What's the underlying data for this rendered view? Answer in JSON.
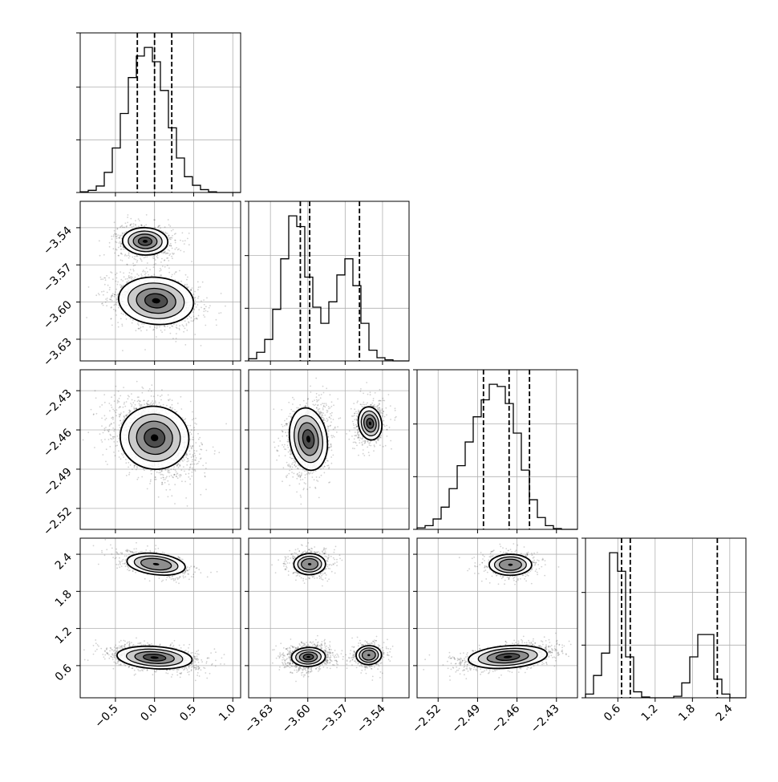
{
  "chart_data": {
    "type": "corner",
    "variables": [
      {
        "ticks": [
          -0.5,
          0.0,
          0.5,
          1.0
        ],
        "tick_labels": [
          "−0.5",
          "0.0",
          "0.5",
          "1.0"
        ],
        "range": [
          -0.95,
          1.1
        ]
      },
      {
        "ticks": [
          -3.63,
          -3.6,
          -3.57,
          -3.54
        ],
        "tick_labels": [
          "−3.63",
          "−3.60",
          "−3.57",
          "−3.54"
        ],
        "range": [
          -3.6475,
          -3.5187
        ]
      },
      {
        "ticks": [
          -2.52,
          -2.49,
          -2.46,
          -2.43
        ],
        "tick_labels": [
          "−2.52",
          "−2.49",
          "−2.46",
          "−2.43"
        ],
        "range": [
          -2.536,
          -2.414
        ]
      },
      {
        "ticks": [
          0.6,
          1.2,
          1.8,
          2.4
        ],
        "tick_labels": [
          "0.6",
          "1.2",
          "1.8",
          "2.4"
        ],
        "range": [
          0.08,
          2.66
        ]
      }
    ],
    "quantiles": [
      [
        -0.22,
        0.0,
        0.22
      ],
      [
        -3.606,
        -3.5985,
        -3.5585
      ],
      [
        -2.4855,
        -2.466,
        -2.4505
      ],
      [
        0.66,
        0.8,
        2.2
      ]
    ],
    "histograms": [
      {
        "bins": [
          -0.95,
          1.1
        ],
        "counts": [
          1,
          3,
          9,
          28,
          62,
          110,
          160,
          190,
          202,
          182,
          142,
          90,
          48,
          22,
          10,
          4,
          1,
          0,
          0,
          0
        ]
      },
      {
        "bins": [
          -3.6475,
          -3.5187
        ],
        "counts": [
          2,
          8,
          20,
          48,
          95,
          135,
          125,
          78,
          50,
          35,
          55,
          80,
          95,
          70,
          35,
          10,
          3,
          1,
          0,
          0
        ]
      },
      {
        "bins": [
          -2.536,
          -2.414
        ],
        "counts": [
          2,
          5,
          14,
          30,
          55,
          86,
          118,
          152,
          175,
          196,
          193,
          170,
          130,
          80,
          40,
          16,
          5,
          1,
          0,
          0
        ]
      },
      {
        "bins": [
          0.08,
          2.66
        ],
        "counts": [
          5,
          30,
          60,
          195,
          170,
          55,
          8,
          1,
          0,
          0,
          0,
          2,
          20,
          55,
          85,
          85,
          25,
          5,
          0,
          0
        ]
      }
    ],
    "modes": {
      "0": [
        {
          "mu": 0.0,
          "sd": 0.2,
          "w": 1
        }
      ],
      "1": [
        {
          "mu": -3.5985,
          "sd": 0.0075,
          "w": 0.68
        },
        {
          "mu": -3.5505,
          "sd": 0.0065,
          "w": 0.32
        }
      ],
      "2": [
        {
          "mu": -2.465,
          "sd": 0.0115,
          "w": 1
        }
      ],
      "3": [
        {
          "mu": 0.73,
          "sd": 0.12,
          "w": 0.73
        },
        {
          "mu": 2.23,
          "sd": 0.12,
          "w": 0.27
        }
      ]
    },
    "pairs": [
      {
        "x": 0,
        "y": 1,
        "blobs": [
          {
            "cx": 0.02,
            "cy": -3.599,
            "sx": 0.24,
            "sy": 0.0095,
            "rho": -0.25,
            "w": 0.68
          },
          {
            "cx": -0.12,
            "cy": -3.551,
            "sx": 0.17,
            "sy": 0.0065,
            "rho": -0.1,
            "w": 0.32
          }
        ]
      },
      {
        "x": 0,
        "y": 2,
        "blobs": [
          {
            "cx": 0.0,
            "cy": -2.466,
            "sx": 0.22,
            "sy": 0.012,
            "rho": -0.35,
            "w": 1
          }
        ]
      },
      {
        "x": 1,
        "y": 2,
        "blobs": [
          {
            "cx": -3.5995,
            "cy": -2.467,
            "sx": 0.0075,
            "sy": 0.012,
            "rho": 0.15,
            "w": 0.68
          },
          {
            "cx": -3.55,
            "cy": -2.455,
            "sx": 0.0055,
            "sy": 0.0075,
            "rho": 0.2,
            "w": 0.32
          }
        ]
      },
      {
        "x": 0,
        "y": 3,
        "blobs": [
          {
            "cx": 0.0,
            "cy": 0.73,
            "sx": 0.24,
            "sy": 0.09,
            "rho": -0.35,
            "w": 0.73
          },
          {
            "cx": 0.02,
            "cy": 2.24,
            "sx": 0.22,
            "sy": 0.1,
            "rho": -0.55,
            "w": 0.27
          }
        ]
      },
      {
        "x": 1,
        "y": 3,
        "blobs": [
          {
            "cx": -3.5995,
            "cy": 0.74,
            "sx": 0.008,
            "sy": 0.09,
            "rho": 0.1,
            "w": 0.5
          },
          {
            "cx": -3.551,
            "cy": 0.77,
            "sx": 0.006,
            "sy": 0.09,
            "rho": 0.1,
            "w": 0.23
          },
          {
            "cx": -3.5985,
            "cy": 2.24,
            "sx": 0.0075,
            "sy": 0.1,
            "rho": 0.05,
            "w": 0.27
          }
        ]
      },
      {
        "x": 2,
        "y": 3,
        "blobs": [
          {
            "cx": -2.467,
            "cy": 0.74,
            "sx": 0.015,
            "sy": 0.09,
            "rho": 0.45,
            "w": 0.73
          },
          {
            "cx": -2.465,
            "cy": 2.23,
            "sx": 0.0095,
            "sy": 0.1,
            "rho": 0.0,
            "w": 0.27
          }
        ]
      }
    ],
    "contour_levels": [
      0.12,
      0.32,
      0.58,
      0.83
    ],
    "xlabel": "",
    "ylabel": "",
    "grid": true
  }
}
